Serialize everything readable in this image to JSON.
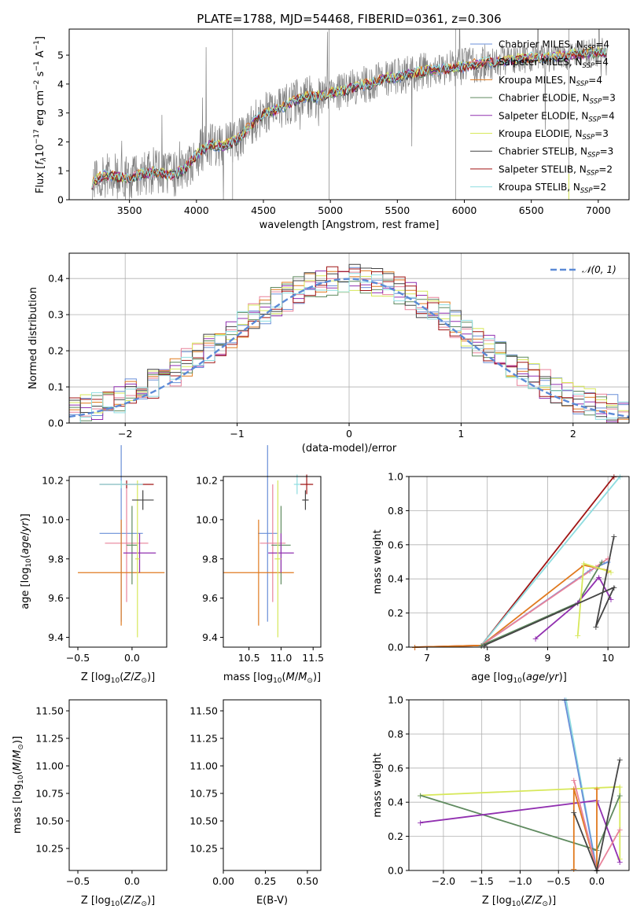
{
  "title": "PLATE=1788, MJD=54468, FIBERID=0361, z=0.306",
  "colors": {
    "Chabrier MILES": "#6a8fd8",
    "Salpeter MILES": "#e8829a",
    "Kroupa MILES": "#e07a1f",
    "Chabrier ELODIE": "#5f8a5f",
    "Salpeter ELODIE": "#9130b0",
    "Kroupa ELODIE": "#d7e85a",
    "Chabrier STELIB": "#444444",
    "Salpeter STELIB": "#a01515",
    "Kroupa STELIB": "#8fdde0",
    "data": "#808080",
    "normal": "#5b8ad6"
  },
  "chart_data": [
    {
      "type": "line",
      "id": "spectrum",
      "xlabel": "wavelength [Angstrom, rest frame]",
      "ylabel": "Flux [f_λ10^-17 erg cm^-2 s^-1 A^-1]",
      "xlim": [
        3050,
        7230
      ],
      "ylim": [
        0,
        5.9
      ],
      "xticks": [
        3500,
        4000,
        4500,
        5000,
        5500,
        6000,
        6500,
        7000
      ],
      "yticks": [
        0,
        1,
        2,
        3,
        4,
        5
      ],
      "continuum_x": [
        3220,
        3300,
        3400,
        3500,
        3600,
        3700,
        3800,
        3900,
        4000,
        4100,
        4200,
        4300,
        4400,
        4500,
        4600,
        4700,
        4800,
        4900,
        5000,
        5100,
        5200,
        5300,
        5400,
        5500,
        5600,
        5700,
        5800,
        5900,
        6000,
        6100,
        6200,
        6300,
        6400,
        6500,
        6600,
        6700,
        6800,
        6900,
        7000,
        7070
      ],
      "continuum_y": [
        0.55,
        0.85,
        0.8,
        0.75,
        0.9,
        0.95,
        0.85,
        1.0,
        1.55,
        1.9,
        1.85,
        2.05,
        2.55,
        2.95,
        3.1,
        3.35,
        3.55,
        3.55,
        3.7,
        3.75,
        3.95,
        4.0,
        4.2,
        4.25,
        4.35,
        4.45,
        4.5,
        4.55,
        4.6,
        4.7,
        4.75,
        4.8,
        4.85,
        4.9,
        4.9,
        4.95,
        5.0,
        5.05,
        5.1,
        5.1
      ],
      "legend": [
        "Chabrier MILES, N_SSP=4",
        "Salpeter MILES, N_SSP=4",
        "Kroupa MILES, N_SSP=4",
        "Chabrier ELODIE, N_SSP=3",
        "Salpeter ELODIE, N_SSP=4",
        "Kroupa ELODIE, N_SSP=3",
        "Chabrier STELIB, N_SSP=3",
        "Salpeter STELIB, N_SSP=2",
        "Kroupa STELIB, N_SSP=2"
      ],
      "legend_placement": "upper right"
    },
    {
      "type": "histogram",
      "id": "residuals",
      "xlabel": "(data-model)/error",
      "ylabel": "Normed distribution",
      "xlim": [
        -2.5,
        2.5
      ],
      "ylim": [
        0,
        0.47
      ],
      "xticks": [
        -2,
        -1,
        0,
        1,
        2
      ],
      "yticks": [
        0.0,
        0.1,
        0.2,
        0.3,
        0.4
      ],
      "legend": [
        "𝒩(0, 1)"
      ],
      "bin_width": 0.1,
      "grid": true
    },
    {
      "type": "scatter",
      "id": "age-vs-Z",
      "xlabel": "Z [log10(Z/Z⊙)]",
      "ylabel": "age [log10(age/yr)]",
      "xlim": [
        -0.58,
        0.32
      ],
      "ylim": [
        9.35,
        10.22
      ],
      "xticks": [
        -0.5,
        0.0
      ],
      "yticks": [
        9.4,
        9.6,
        9.8,
        10.0,
        10.2
      ],
      "points": [
        {
          "model": "Chabrier MILES",
          "x": -0.1,
          "y": 9.93,
          "xerr": 0.2,
          "yerr": 0.45
        },
        {
          "model": "Salpeter MILES",
          "x": -0.05,
          "y": 9.88,
          "xerr": 0.2,
          "yerr": 0.3
        },
        {
          "model": "Kroupa MILES",
          "x": -0.1,
          "y": 9.73,
          "xerr": 0.4,
          "yerr": 0.27
        },
        {
          "model": "Chabrier ELODIE",
          "x": 0.0,
          "y": 9.87,
          "xerr": 0.05,
          "yerr": 0.2
        },
        {
          "model": "Salpeter ELODIE",
          "x": 0.07,
          "y": 9.83,
          "xerr": 0.15,
          "yerr": 0.1
        },
        {
          "model": "Kroupa ELODIE",
          "x": 0.05,
          "y": 9.8,
          "xerr": 0.02,
          "yerr": 0.4
        },
        {
          "model": "Chabrier STELIB",
          "x": 0.1,
          "y": 10.1,
          "xerr": 0.1,
          "yerr": 0.05
        },
        {
          "model": "Salpeter STELIB",
          "x": -0.05,
          "y": 10.18,
          "xerr": 0.25,
          "yerr": 0.02
        },
        {
          "model": "Kroupa STELIB",
          "x": -0.1,
          "y": 10.18,
          "xerr": 0.2,
          "yerr": 0.02
        }
      ]
    },
    {
      "type": "scatter",
      "id": "age-vs-mass",
      "xlabel": "mass [log10(M/M⊙)]",
      "xlim": [
        10.1,
        11.62
      ],
      "ylim": [
        9.35,
        10.22
      ],
      "xticks": [
        10.5,
        11.0,
        11.5
      ],
      "yticks": [
        9.4,
        9.6,
        9.8,
        10.0,
        10.2
      ],
      "points": [
        {
          "model": "Chabrier MILES",
          "x": 10.79,
          "y": 9.93,
          "xerr": 0.15,
          "yerr": 0.45
        },
        {
          "model": "Salpeter MILES",
          "x": 10.87,
          "y": 9.88,
          "xerr": 0.2,
          "yerr": 0.3
        },
        {
          "model": "Kroupa MILES",
          "x": 10.65,
          "y": 9.73,
          "xerr": 0.55,
          "yerr": 0.27
        },
        {
          "model": "Chabrier ELODIE",
          "x": 11.0,
          "y": 9.87,
          "xerr": 0.15,
          "yerr": 0.2
        },
        {
          "model": "Salpeter ELODIE",
          "x": 11.0,
          "y": 9.83,
          "xerr": 0.2,
          "yerr": 0.1
        },
        {
          "model": "Kroupa ELODIE",
          "x": 10.95,
          "y": 9.8,
          "xerr": 0.05,
          "yerr": 0.4
        },
        {
          "model": "Chabrier STELIB",
          "x": 11.38,
          "y": 10.1,
          "xerr": 0.05,
          "yerr": 0.05
        },
        {
          "model": "Salpeter STELIB",
          "x": 11.4,
          "y": 10.18,
          "xerr": 0.1,
          "yerr": 0.05
        },
        {
          "model": "Kroupa STELIB",
          "x": 11.25,
          "y": 10.18,
          "xerr": 0.05,
          "yerr": 0.05
        }
      ]
    },
    {
      "type": "line",
      "id": "mass-weight-vs-age",
      "xlabel": "age [log10(age/yr)]",
      "ylabel": "mass weight",
      "xlim": [
        6.7,
        10.35
      ],
      "ylim": [
        0,
        1.0
      ],
      "xticks": [
        7,
        8,
        9,
        10
      ],
      "yticks": [
        0.0,
        0.2,
        0.4,
        0.6,
        0.8,
        1.0
      ],
      "grid": true
    },
    {
      "type": "scatter",
      "id": "mass-vs-Z",
      "xlabel": "Z [log10(Z/Z⊙)]",
      "ylabel": "mass [log10(M/M⊙)]",
      "xlim": [
        -0.58,
        0.32
      ],
      "ylim": [
        10.05,
        11.6
      ],
      "xticks": [
        -0.5,
        0.0
      ],
      "yticks": [
        10.25,
        10.5,
        10.75,
        11.0,
        11.25,
        11.5
      ]
    },
    {
      "type": "scatter",
      "id": "mass-vs-EBV",
      "xlabel": "E(B-V)",
      "xlim": [
        0.0,
        0.58
      ],
      "ylim": [
        10.05,
        11.6
      ],
      "xticks": [
        0.0,
        0.25,
        0.5
      ],
      "yticks": [
        10.25,
        10.5,
        10.75,
        11.0,
        11.25,
        11.5
      ]
    },
    {
      "type": "line",
      "id": "mass-weight-vs-Z",
      "xlabel": "Z [log10(Z/Z⊙)]",
      "ylabel": "mass weight",
      "xlim": [
        -2.45,
        0.42
      ],
      "ylim": [
        0,
        1.0
      ],
      "xticks": [
        -2.0,
        -1.5,
        -1.0,
        -0.5,
        0.0
      ],
      "yticks": [
        0.0,
        0.2,
        0.4,
        0.6,
        0.8,
        1.0
      ],
      "grid": true
    }
  ]
}
